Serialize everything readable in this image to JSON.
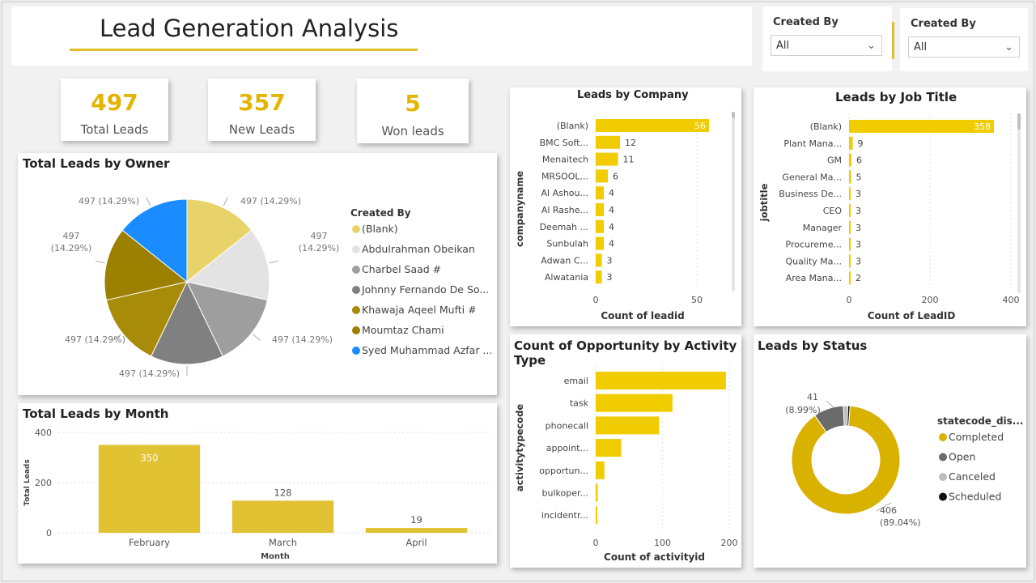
{
  "page": {
    "title": "Lead Generation Analysis"
  },
  "slicers": [
    {
      "label": "Created By",
      "value": "All"
    },
    {
      "label": "Created By",
      "value": "All"
    }
  ],
  "kpis": [
    {
      "value": "497",
      "label": "Total Leads"
    },
    {
      "value": "357",
      "label": "New Leads"
    },
    {
      "value": "5",
      "label": "Won leads"
    }
  ],
  "colors": {
    "accent": "#e0c02a",
    "bar": "#f0cc00",
    "donut_completed": "#d9b200",
    "donut_open": "#6b6b6b",
    "donut_canceled": "#bdbdbd",
    "donut_scheduled": "#111111"
  },
  "chart_data": [
    {
      "id": "owner_pie",
      "type": "pie",
      "title": "Total Leads by Owner",
      "legend_title": "Created By",
      "slices": [
        {
          "name": "(Blank)",
          "value": 497,
          "label": "497 (14.29%)",
          "color": "#e8d36a"
        },
        {
          "name": "Abdulrahman Obeikan",
          "value": 497,
          "label": "497 (14.29%)",
          "color": "#e3e3e3"
        },
        {
          "name": "Charbel Saad #",
          "value": 497,
          "label": "497 (14.29%)",
          "color": "#9e9e9e"
        },
        {
          "name": "Johnny Fernando De So...",
          "value": 497,
          "label": "497 (14.29%)",
          "color": "#808080"
        },
        {
          "name": "Khawaja Aqeel Mufti #",
          "value": 497,
          "label": "497 (14.29%)",
          "color": "#a98b0a"
        },
        {
          "name": "Moumtaz Chami",
          "value": 497,
          "label": "497 (14.29%)",
          "color": "#9c8000"
        },
        {
          "name": "Syed Muhammad Azfar ...",
          "value": 497,
          "label": "497 (14.29%)",
          "color": "#1a8cff"
        }
      ]
    },
    {
      "id": "month_bar",
      "type": "bar",
      "title": "Total Leads by Month",
      "categories": [
        "February",
        "March",
        "April"
      ],
      "values": [
        350,
        128,
        19
      ],
      "xlabel": "Month",
      "ylabel": "Total Leads",
      "yticks": [
        "0",
        "200",
        "400"
      ],
      "ylim": [
        0,
        400
      ]
    },
    {
      "id": "company_bar",
      "type": "bar",
      "orientation": "horizontal",
      "title": "Leads by Company",
      "categories": [
        "(Blank)",
        "BMC Soft...",
        "Menaitech",
        "MRSOOL...",
        "Al Ashou...",
        "Al Rashe...",
        "Deemah ...",
        "Sunbulah",
        "Adwan C...",
        "Alwatania"
      ],
      "values": [
        56,
        12,
        11,
        6,
        4,
        4,
        4,
        4,
        3,
        3
      ],
      "xlabel": "Count of leadid",
      "ylabel": "companyname",
      "xticks": [
        "0",
        "50"
      ],
      "xlim": [
        0,
        60
      ]
    },
    {
      "id": "jobtitle_bar",
      "type": "bar",
      "orientation": "horizontal",
      "title": "Leads by Job Title",
      "categories": [
        "(Blank)",
        "Plant Mana...",
        "GM",
        "General Ma...",
        "Business De...",
        "CEO",
        "Manager",
        "Procureme...",
        "Quality Ma...",
        "Area Mana..."
      ],
      "values": [
        358,
        9,
        6,
        5,
        3,
        3,
        3,
        3,
        3,
        2
      ],
      "xlabel": "Count of LeadID",
      "ylabel": "jobtitle",
      "xticks": [
        "0",
        "200",
        "400"
      ],
      "xlim": [
        0,
        400
      ]
    },
    {
      "id": "activity_bar",
      "type": "bar",
      "orientation": "horizontal",
      "title": "Count of Opportunity by Activity Type",
      "categories": [
        "email",
        "task",
        "phonecall",
        "appoint...",
        "opportun...",
        "bulkoper...",
        "incidentr..."
      ],
      "values": [
        195,
        115,
        95,
        38,
        13,
        3,
        2
      ],
      "xlabel": "Count of activityid",
      "ylabel": "activitytypecode",
      "xticks": [
        "0",
        "100",
        "200"
      ],
      "xlim": [
        0,
        200
      ]
    },
    {
      "id": "status_donut",
      "type": "pie",
      "title": "Leads by Status",
      "legend_title": "statecode_dis...",
      "slices": [
        {
          "name": "Completed",
          "value": 406,
          "label_value": "406",
          "label_pct": "(89.04%)"
        },
        {
          "name": "Open",
          "value": 41,
          "label_value": "41",
          "label_pct": "(8.99%)"
        },
        {
          "name": "Canceled",
          "value": 6
        },
        {
          "name": "Scheduled",
          "value": 3
        }
      ]
    }
  ]
}
